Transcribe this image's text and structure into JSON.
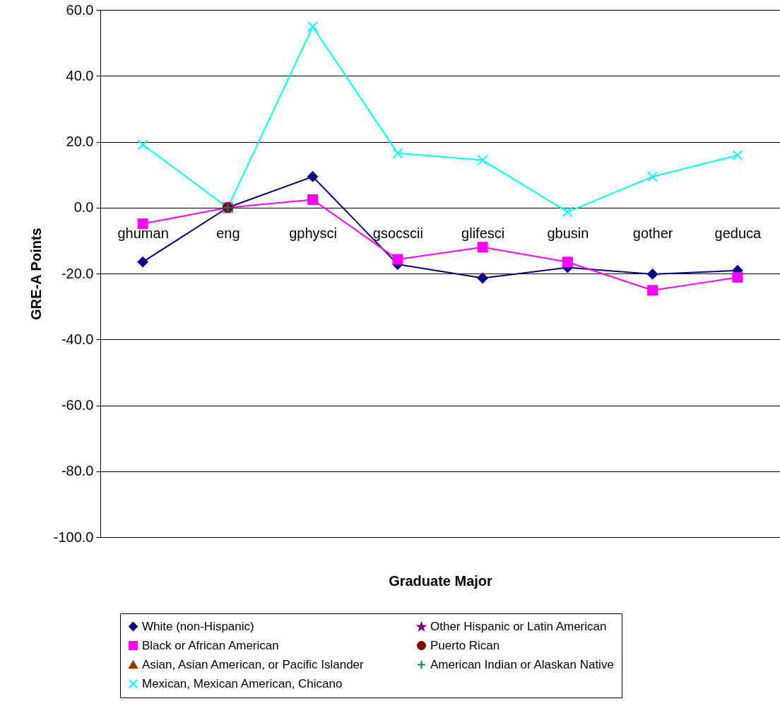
{
  "chart_data": {
    "type": "line",
    "xlabel": "Graduate Major",
    "ylabel": "GRE-A Points",
    "categories": [
      "ghuman",
      "eng",
      "gphysci",
      "gsocscii",
      "glifesci",
      "gbusin",
      "gother",
      "geduca"
    ],
    "series": [
      {
        "name": "White (non-Hispanic)",
        "color": "#000080",
        "marker": "diamond",
        "values": [
          -16.5,
          0,
          9.4,
          -17.2,
          -21.4,
          -18.2,
          -20.2,
          -19.1
        ]
      },
      {
        "name": "Black or African American",
        "color": "#ff00ff",
        "marker": "square",
        "values": [
          -4.9,
          0,
          2.4,
          -15.7,
          -12.0,
          -16.5,
          -25.1,
          -21.2
        ]
      },
      {
        "name": "Asian, Asian American, or Pacific Islander",
        "color": "#993300",
        "marker": "triangle",
        "values": [
          null,
          0,
          null,
          null,
          null,
          null,
          null,
          null
        ]
      },
      {
        "name": "Mexican, Mexican American, Chicano",
        "color": "#00ffff",
        "marker": "cross",
        "values": [
          19.1,
          0,
          54.9,
          16.5,
          14.4,
          -1.3,
          9.4,
          15.9
        ]
      },
      {
        "name": "Other Hispanic or Latin American",
        "color": "#800080",
        "marker": "star",
        "values": [
          null,
          null,
          null,
          null,
          null,
          null,
          null,
          null
        ]
      },
      {
        "name": "Puerto Rican",
        "color": "#800000",
        "marker": "circle",
        "values": [
          null,
          0,
          null,
          null,
          null,
          null,
          null,
          null
        ]
      },
      {
        "name": "American Indian or Alaskan Native",
        "color": "#008080",
        "marker": "plus",
        "values": [
          null,
          0,
          null,
          null,
          null,
          null,
          null,
          null
        ]
      }
    ],
    "ylim": [
      -100,
      60
    ],
    "yticks": [
      {
        "value": -100,
        "label": "-100.0"
      },
      {
        "value": -80,
        "label": "-80.0"
      },
      {
        "value": -60,
        "label": "-60.0"
      },
      {
        "value": -40,
        "label": "-40.0"
      },
      {
        "value": -20,
        "label": "-20.0"
      },
      {
        "value": 0,
        "label": "0.0"
      },
      {
        "value": 20,
        "label": "20.0"
      },
      {
        "value": 40,
        "label": "40.0"
      },
      {
        "value": 60,
        "label": "60.0"
      }
    ],
    "grid": "y",
    "legend": "bottom"
  }
}
